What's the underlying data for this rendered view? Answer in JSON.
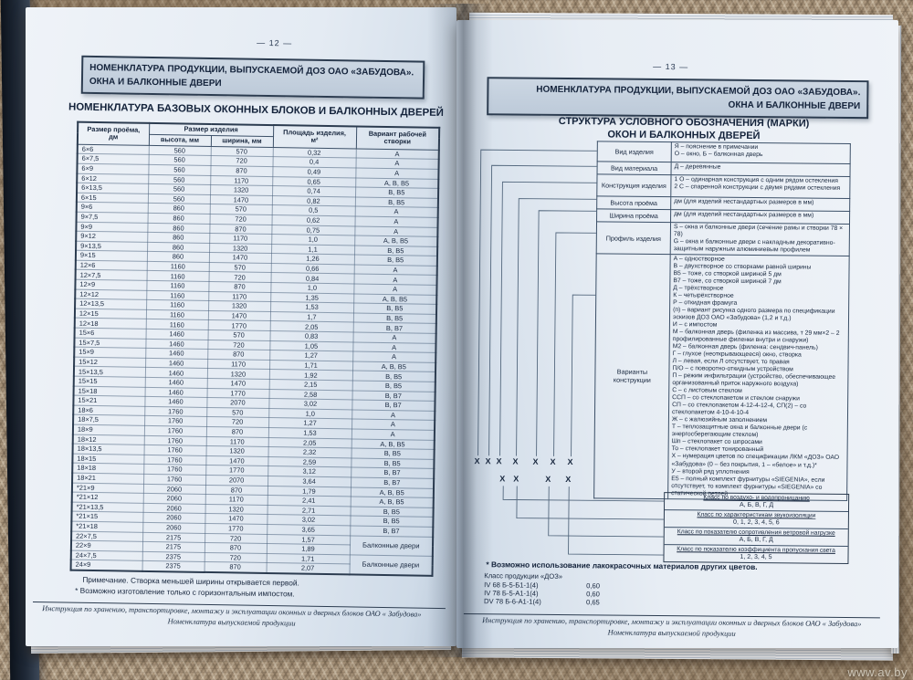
{
  "photo": {
    "watermark": "www.av.by"
  },
  "left_page": {
    "page_number": "— 12 —",
    "header_line1": "НОМЕНКЛАТУРА ПРОДУКЦИИ, ВЫПУСКАЕМОЙ ДОЗ ОАО «ЗАБУДОВА».",
    "header_line2": "ОКНА И БАЛКОННЫЕ ДВЕРИ",
    "title": "НОМЕНКЛАТУРА БАЗОВЫХ ОКОННЫХ БЛОКОВ И БАЛКОННЫХ ДВЕРЕЙ",
    "table": {
      "col_proem": "Размер проёма,\nдм",
      "col_size": "Размер изделия",
      "col_height": "высота, мм",
      "col_width": "ширина, мм",
      "col_area": "Площадь изделия,\nм²",
      "col_variant": "Вариант рабочей\nстворки",
      "groups": [
        {
          "rows": [
            [
              "6×6",
              "560",
              "570",
              "0,32",
              "А"
            ],
            [
              "6×7,5",
              "560",
              "720",
              "0,4",
              "А"
            ],
            [
              "6×9",
              "560",
              "870",
              "0,49",
              "А"
            ],
            [
              "6×12",
              "560",
              "1170",
              "0,65",
              "А, В, В5"
            ],
            [
              "6×13,5",
              "560",
              "1320",
              "0,74",
              "В, В5"
            ],
            [
              "6×15",
              "560",
              "1470",
              "0,82",
              "В, В5"
            ]
          ]
        },
        {
          "rows": [
            [
              "9×6",
              "860",
              "570",
              "0,5",
              "А"
            ],
            [
              "9×7,5",
              "860",
              "720",
              "0,62",
              "А"
            ],
            [
              "9×9",
              "860",
              "870",
              "0,75",
              "А"
            ],
            [
              "9×12",
              "860",
              "1170",
              "1,0",
              "А, В, В5"
            ],
            [
              "9×13,5",
              "860",
              "1320",
              "1,1",
              "В, В5"
            ],
            [
              "9×15",
              "860",
              "1470",
              "1,26",
              "В, В5"
            ]
          ]
        },
        {
          "rows": [
            [
              "12×6",
              "1160",
              "570",
              "0,66",
              "А"
            ],
            [
              "12×7,5",
              "1160",
              "720",
              "0,84",
              "А"
            ],
            [
              "12×9",
              "1160",
              "870",
              "1,0",
              "А"
            ],
            [
              "12×12",
              "1160",
              "1170",
              "1,35",
              "А, В, В5"
            ],
            [
              "12×13,5",
              "1160",
              "1320",
              "1,53",
              "В, В5"
            ],
            [
              "12×15",
              "1160",
              "1470",
              "1,7",
              "В, В5"
            ],
            [
              "12×18",
              "1160",
              "1770",
              "2,05",
              "В, В7"
            ]
          ]
        },
        {
          "rows": [
            [
              "15×6",
              "1460",
              "570",
              "0,83",
              "А"
            ],
            [
              "15×7,5",
              "1460",
              "720",
              "1,05",
              "А"
            ],
            [
              "15×9",
              "1460",
              "870",
              "1,27",
              "А"
            ],
            [
              "15×12",
              "1460",
              "1170",
              "1,71",
              "А, В, В5"
            ],
            [
              "15×13,5",
              "1460",
              "1320",
              "1,92",
              "В, В5"
            ],
            [
              "15×15",
              "1460",
              "1470",
              "2,15",
              "В, В5"
            ],
            [
              "15×18",
              "1460",
              "1770",
              "2,58",
              "В, В7"
            ],
            [
              "15×21",
              "1460",
              "2070",
              "3,02",
              "В, В7"
            ]
          ]
        },
        {
          "rows": [
            [
              "18×6",
              "1760",
              "570",
              "1,0",
              "А"
            ],
            [
              "18×7,5",
              "1760",
              "720",
              "1,27",
              "А"
            ],
            [
              "18×9",
              "1760",
              "870",
              "1,53",
              "А"
            ],
            [
              "18×12",
              "1760",
              "1170",
              "2,05",
              "А, В, В5"
            ],
            [
              "18×13,5",
              "1760",
              "1320",
              "2,32",
              "В, В5"
            ],
            [
              "18×15",
              "1760",
              "1470",
              "2,59",
              "В, В5"
            ],
            [
              "18×18",
              "1760",
              "1770",
              "3,12",
              "В, В7"
            ],
            [
              "18×21",
              "1760",
              "2070",
              "3,64",
              "В, В7"
            ]
          ]
        },
        {
          "rows": [
            [
              "*21×9",
              "2060",
              "870",
              "1,79",
              "А, В, В5"
            ],
            [
              "*21×12",
              "2060",
              "1170",
              "2,41",
              "А, В, В5"
            ],
            [
              "*21×13,5",
              "2060",
              "1320",
              "2,71",
              "В, В5"
            ],
            [
              "*21×15",
              "2060",
              "1470",
              "3,02",
              "В, В5"
            ],
            [
              "*21×18",
              "2060",
              "1770",
              "3,65",
              "В, В7"
            ]
          ]
        },
        {
          "door_label": "Балконные двери",
          "rows": [
            [
              "22×7,5",
              "2175",
              "720",
              "1,57"
            ],
            [
              "22×9",
              "2175",
              "870",
              "1,89"
            ]
          ]
        },
        {
          "door_label": "Балконные двери",
          "rows": [
            [
              "24×7,5",
              "2375",
              "720",
              "1,71"
            ],
            [
              "24×9",
              "2375",
              "870",
              "2,07"
            ]
          ]
        }
      ]
    },
    "notes": [
      "Примечание. Створка меньшей ширины открывается первой.",
      "* Возможно изготовление только с горизонтальным импостом."
    ],
    "footer_line1": "Инструкция по хранению, транспортировке, монтажу и эксплуатации оконных и дверных блоков ОАО « Забудова»",
    "footer_line2": "Номенклатура выпускаемой продукции"
  },
  "right_page": {
    "page_number": "— 13 —",
    "header_line1": "НОМЕНКЛАТУРА ПРОДУКЦИИ, ВЫПУСКАЕМОЙ ДОЗ ОАО «ЗАБУДОВА».",
    "header_line2": "ОКНА И БАЛКОННЫЕ ДВЕРИ",
    "title_line1": "СТРУКТУРА УСЛОВНОГО ОБОЗНАЧЕНИЯ (МАРКИ)",
    "title_line2": "ОКОН И БАЛКОННЫХ ДВЕРЕЙ",
    "legend": [
      {
        "label": "Вид изделия",
        "lines": [
          "Я – пояснение в примечании",
          "О – окно, Б – балконная дверь"
        ]
      },
      {
        "label": "Вид материала",
        "lines": [
          "Д – деревянные"
        ]
      },
      {
        "label": "Конструкция изделия",
        "lines": [
          "1 О – одинарная конструкция с одним рядом остекления",
          "2 С – спаренной конструкции с двумя рядами остекления"
        ]
      },
      {
        "label": "Высота проёма",
        "lines": [
          "дм (для изделий нестандартных размеров в мм)"
        ]
      },
      {
        "label": "Ширина проёма",
        "lines": [
          "дм (для изделий нестандартных размеров в мм)"
        ]
      },
      {
        "label": "Профиль изделия",
        "lines": [
          "S – окна и балконные двери (сечение рамы и створки 78 × 78)",
          "G – окна и балконные двери с накладным декоративно-защитным наружным алюминиевым профилем"
        ]
      },
      {
        "label": "Варианты конструкции",
        "lines": [
          "А – одностворное",
          "В – двухстворное со створками равной ширины",
          "В5 – тоже, со створкой шириной 5 дм",
          "В7 – тоже, со створкой шириной 7 дм",
          "Д – трёхстворное",
          "К – четырёхстворное",
          "Р – откидная фрамуга",
          "(п) – вариант рисунка одного размера по спецификации эскизов ДОЗ ОАО «Забудова» (1,2 и т.д.)",
          "И – с импостом",
          "М – балконная дверь (филенка из массива, т 29 мм×2 – 2 профилированные филенки внутри и снаружи)",
          "М2 – балконная дверь (филенка: сендвич-панель)",
          "Г – глухое (неоткрывающееся) окно, створка",
          "Л – левая, если Л отсутствует, то правая",
          "П/О – с поворотно-откидным устройством",
          "П – режим инфильтрации (устройство, обеспечивающее организованный приток наружного воздуха)",
          "С – с листовым стеклом",
          "ССП – со стеклопакетом и стеклом снаружи",
          "СП – со стеклопакетом 4-12-4-12-4, СП(2) – со стеклопакетом 4-10-4-10-4",
          "Ж – с жалюзийным заполнением",
          "Т – теплозащитные окна и балконные двери (с энергосберегающим стеклом)",
          "Шп – стеклопакет со шпросами",
          "То – стеклопакет тонированный",
          "Х – нумерация цветов по спецификации ЛКМ «ДОЗ» ОАО «Забудова» (0 – без покрытия, 1 – «белое» и т.д.)*",
          "У – второй ряд уплотнения",
          "Е5 – полный комплект фурнитуры «SIEGENIA», если отсутствует, то комплект фурнитуры «SIEGENIA» со статической петлей"
        ]
      }
    ],
    "marks_row1": [
      "Х",
      "Х",
      "Х",
      "Х",
      "Х",
      "Х",
      "Х"
    ],
    "marks_row2": [
      "Х",
      "Х",
      "Х",
      "Х"
    ],
    "class_boxes": [
      {
        "title": "Класс по воздухо- и водопроницанию",
        "values": "А, Б, В, Г, Д"
      },
      {
        "title": "Класс по характеристикам звукоизоляции",
        "values": "0, 1, 2, 3, 4, 5, 6"
      },
      {
        "title": "Класс по показателю сопротивления ветровой нагрузке",
        "values": "А, Б, В, Г, Д"
      },
      {
        "title": "Класс по показателю коэффициента пропускания света",
        "values": "1, 2, 3, 4, 5"
      }
    ],
    "note": "* Возможно использование лакокрасочных материалов других цветов.",
    "product_class_label": "Класс продукции «ДОЗ»",
    "product_rows": [
      [
        "IV 68 Б-5-Б1-1(4)",
        "0,60"
      ],
      [
        "IV 78 Б-5-А1-1(4)",
        "0,60"
      ],
      [
        "DV 78 Б-6-А1-1(4)",
        "0,65"
      ]
    ],
    "footer_line1": "Инструкция по хранению, транспортировке, монтажу и эксплуатации оконных и дверных блоков ОАО « Забудова»",
    "footer_line2": "Номенклатура выпускаемой продукции"
  }
}
